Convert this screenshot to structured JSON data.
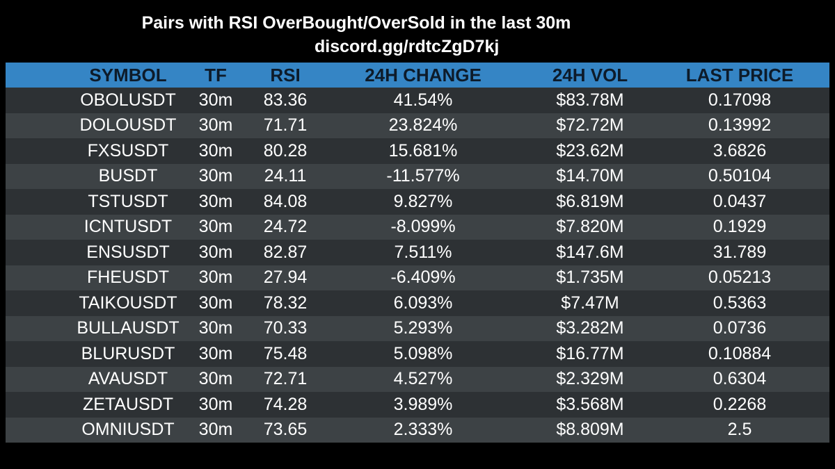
{
  "title": "Pairs with RSI OverBought/OverSold in the last 30m",
  "subtitle": "discord.gg/rdtcZgD7kj",
  "colors": {
    "background": "#000000",
    "header": "#3585c5",
    "header_text": "#0d1b2a",
    "row_dark": "#2d3134",
    "row_light": "#3d4245",
    "cell_text": "#ffffff"
  },
  "table": {
    "headers": [
      "SYMBOL",
      "TF",
      "RSI",
      "24H CHANGE",
      "24H VOL",
      "LAST PRICE"
    ],
    "rows": [
      [
        "OBOLUSDT",
        "30m",
        "83.36",
        "41.54%",
        "$83.78M",
        "0.17098"
      ],
      [
        "DOLOUSDT",
        "30m",
        "71.71",
        "23.824%",
        "$72.72M",
        "0.13992"
      ],
      [
        "FXSUSDT",
        "30m",
        "80.28",
        "15.681%",
        "$23.62M",
        "3.6826"
      ],
      [
        "BUSDT",
        "30m",
        "24.11",
        "-11.577%",
        "$14.70M",
        "0.50104"
      ],
      [
        "TSTUSDT",
        "30m",
        "84.08",
        "9.827%",
        "$6.819M",
        "0.0437"
      ],
      [
        "ICNTUSDT",
        "30m",
        "24.72",
        "-8.099%",
        "$7.820M",
        "0.1929"
      ],
      [
        "ENSUSDT",
        "30m",
        "82.87",
        "7.511%",
        "$147.6M",
        "31.789"
      ],
      [
        "FHEUSDT",
        "30m",
        "27.94",
        "-6.409%",
        "$1.735M",
        "0.05213"
      ],
      [
        "TAIKOUSDT",
        "30m",
        "78.32",
        "6.093%",
        "$7.47M",
        "0.5363"
      ],
      [
        "BULLAUSDT",
        "30m",
        "70.33",
        "5.293%",
        "$3.282M",
        "0.0736"
      ],
      [
        "BLURUSDT",
        "30m",
        "75.48",
        "5.098%",
        "$16.77M",
        "0.10884"
      ],
      [
        "AVAUSDT",
        "30m",
        "72.71",
        "4.527%",
        "$2.329M",
        "0.6304"
      ],
      [
        "ZETAUSDT",
        "30m",
        "74.28",
        "3.989%",
        "$3.568M",
        "0.2268"
      ],
      [
        "OMNIUSDT",
        "30m",
        "73.65",
        "2.333%",
        "$8.809M",
        "2.5"
      ]
    ]
  }
}
